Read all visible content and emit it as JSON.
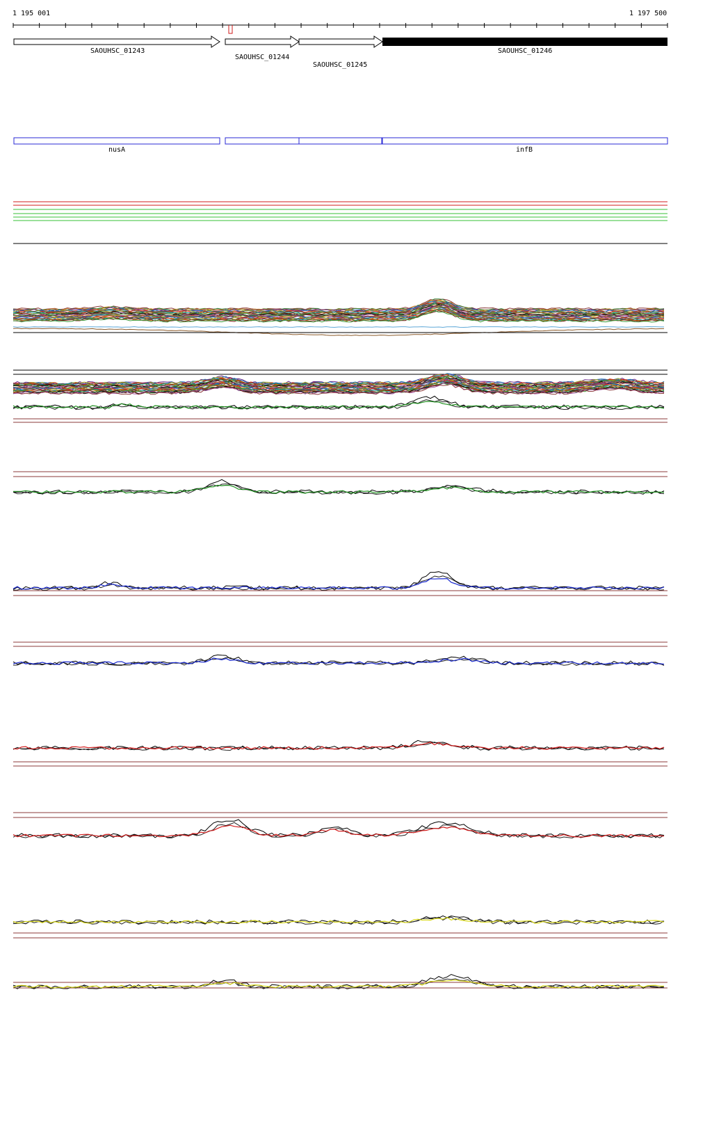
{
  "coords": {
    "start": "1 195 001",
    "end": "1 197 500"
  },
  "colors": {
    "gene_outline": "#000000",
    "gene_filled": "#000000",
    "annotation_box": "#2a2ad6",
    "red": "#d11b1b",
    "green": "#1e8f1e",
    "blue": "#1a2ad0",
    "yellow": "#d8d81a",
    "brown": "#8b3a3a"
  },
  "genes": [
    {
      "id": "SAOUHSC_01243",
      "label": "SAOUHSC_01243",
      "style": "outline"
    },
    {
      "id": "SAOUHSC_01244",
      "label": "SAOUHSC_01244",
      "style": "outline"
    },
    {
      "id": "SAOUHSC_01245",
      "label": "SAOUHSC_01245",
      "style": "outline"
    },
    {
      "id": "SAOUHSC_01246",
      "label": "SAOUHSC_01246",
      "style": "filled"
    }
  ],
  "annotations": [
    {
      "id": "nusA",
      "label": "nusA"
    },
    {
      "id": "unnamed-1",
      "label": ""
    },
    {
      "id": "unnamed-2",
      "label": ""
    },
    {
      "id": "infB",
      "label": "infB"
    }
  ],
  "track_colors": [
    "green",
    "green",
    "blue",
    "blue",
    "red",
    "red",
    "yellow",
    "yellow"
  ]
}
